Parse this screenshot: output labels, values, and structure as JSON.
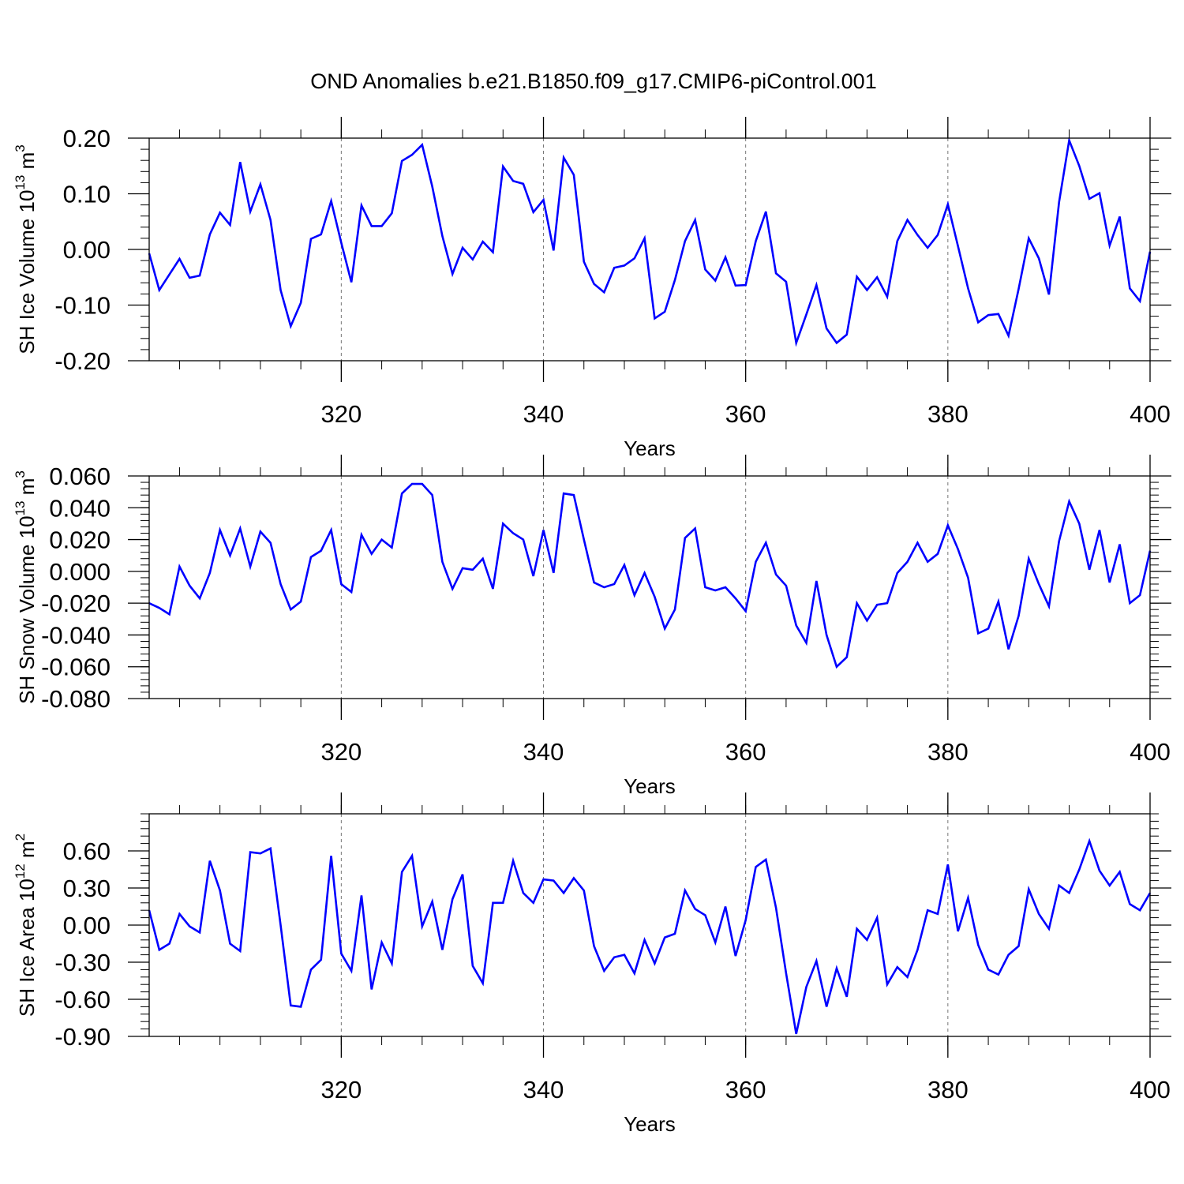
{
  "title": "OND Anomalies b.e21.B1850.f09_g17.CMIP6-piControl.001",
  "chart_data": [
    {
      "type": "line",
      "name": "ice-volume",
      "title": "",
      "xlabel": "Years",
      "ylabel": "SH Ice Volume 10",
      "ylabel_exp": "13",
      "ylabel_unit": " m",
      "ylabel_unit_exp": "3",
      "xlim": [
        301,
        400
      ],
      "ylim": [
        -0.2,
        0.2
      ],
      "xticks": [
        320,
        340,
        360,
        380,
        400
      ],
      "xtick_labels": [
        "320",
        "340",
        "360",
        "380",
        "400"
      ],
      "yticks": [
        -0.2,
        -0.1,
        0.0,
        0.1,
        0.2
      ],
      "ytick_labels": [
        "-0.20",
        "-0.10",
        "0.00",
        "0.10",
        "0.20"
      ],
      "yminor_step": 0.02,
      "xminor_step": 4,
      "grid": "vertical dashed at major x ticks",
      "line_color": "#0000ff",
      "x_start": 301,
      "values": [
        -0.007,
        -0.073,
        -0.045,
        -0.017,
        -0.051,
        -0.047,
        0.027,
        0.066,
        0.044,
        0.157,
        0.068,
        0.117,
        0.053,
        -0.073,
        -0.138,
        -0.096,
        0.019,
        0.027,
        0.087,
        0.012,
        -0.059,
        0.079,
        0.042,
        0.042,
        0.065,
        0.159,
        0.17,
        0.188,
        0.113,
        0.024,
        -0.044,
        0.003,
        -0.018,
        0.014,
        -0.005,
        0.149,
        0.123,
        0.118,
        0.067,
        0.089,
        -0.002,
        0.165,
        0.134,
        -0.022,
        -0.062,
        -0.077,
        -0.033,
        -0.029,
        -0.016,
        0.02,
        -0.124,
        -0.112,
        -0.055,
        0.015,
        0.053,
        -0.036,
        -0.056,
        -0.014,
        -0.065,
        -0.064,
        0.015,
        0.068,
        -0.043,
        -0.058,
        -0.168,
        -0.117,
        -0.064,
        -0.142,
        -0.168,
        -0.153,
        -0.049,
        -0.073,
        -0.05,
        -0.085,
        0.015,
        0.053,
        0.026,
        0.003,
        0.026,
        0.081,
        0.006,
        -0.07,
        -0.131,
        -0.118,
        -0.116,
        -0.155,
        -0.071,
        0.02,
        -0.016,
        -0.081,
        0.085,
        0.196,
        0.15,
        0.091,
        0.101,
        0.007,
        0.059,
        -0.07,
        -0.093,
        -0.004
      ]
    },
    {
      "type": "line",
      "name": "snow-volume",
      "title": "",
      "xlabel": "Years",
      "ylabel": "SH Snow Volume 10",
      "ylabel_exp": "13",
      "ylabel_unit": " m",
      "ylabel_unit_exp": "3",
      "xlim": [
        301,
        400
      ],
      "ylim": [
        -0.08,
        0.06
      ],
      "xticks": [
        320,
        340,
        360,
        380,
        400
      ],
      "xtick_labels": [
        "320",
        "340",
        "360",
        "380",
        "400"
      ],
      "yticks": [
        -0.08,
        -0.06,
        -0.04,
        -0.02,
        0.0,
        0.02,
        0.04,
        0.06
      ],
      "ytick_labels": [
        "-0.080",
        "-0.060",
        "-0.040",
        "-0.020",
        "0.000",
        "0.020",
        "0.040",
        "0.060"
      ],
      "yminor_step": 0.004,
      "xminor_step": 4,
      "grid": "vertical dashed at major x ticks",
      "line_color": "#0000ff",
      "x_start": 301,
      "values": [
        -0.02,
        -0.023,
        -0.027,
        0.003,
        -0.009,
        -0.017,
        -0.001,
        0.026,
        0.01,
        0.027,
        0.003,
        0.025,
        0.018,
        -0.008,
        -0.024,
        -0.019,
        0.009,
        0.013,
        0.026,
        -0.008,
        -0.013,
        0.023,
        0.011,
        0.02,
        0.015,
        0.049,
        0.055,
        0.055,
        0.048,
        0.006,
        -0.011,
        0.002,
        0.001,
        0.008,
        -0.011,
        0.03,
        0.024,
        0.02,
        -0.003,
        0.026,
        -0.001,
        0.049,
        0.048,
        0.02,
        -0.007,
        -0.01,
        -0.008,
        0.004,
        -0.015,
        -0.001,
        -0.016,
        -0.036,
        -0.024,
        0.021,
        0.027,
        -0.01,
        -0.012,
        -0.01,
        -0.017,
        -0.025,
        0.006,
        0.018,
        -0.002,
        -0.009,
        -0.034,
        -0.045,
        -0.006,
        -0.04,
        -0.06,
        -0.054,
        -0.02,
        -0.031,
        -0.021,
        -0.02,
        -0.001,
        0.006,
        0.018,
        0.006,
        0.011,
        0.029,
        0.014,
        -0.004,
        -0.039,
        -0.036,
        -0.019,
        -0.049,
        -0.028,
        0.008,
        -0.008,
        -0.022,
        0.019,
        0.044,
        0.03,
        0.001,
        0.026,
        -0.007,
        0.017,
        -0.02,
        -0.015,
        0.013
      ]
    },
    {
      "type": "line",
      "name": "ice-area",
      "title": "",
      "xlabel": "Years",
      "ylabel": "SH Ice Area 10",
      "ylabel_exp": "12",
      "ylabel_unit": " m",
      "ylabel_unit_exp": "2",
      "xlim": [
        301,
        400
      ],
      "ylim": [
        -0.9,
        0.9
      ],
      "xticks": [
        320,
        340,
        360,
        380,
        400
      ],
      "xtick_labels": [
        "320",
        "340",
        "360",
        "380",
        "400"
      ],
      "yticks": [
        -0.9,
        -0.6,
        -0.3,
        0.0,
        0.3,
        0.6
      ],
      "ytick_labels": [
        "-0.90",
        "-0.60",
        "-0.30",
        "0.00",
        "0.30",
        "0.60"
      ],
      "yminor_step": 0.06,
      "xminor_step": 4,
      "grid": "vertical dashed at major x ticks",
      "line_color": "#0000ff",
      "x_start": 301,
      "values": [
        0.12,
        -0.2,
        -0.15,
        0.09,
        -0.01,
        -0.06,
        0.52,
        0.28,
        -0.15,
        -0.21,
        0.59,
        0.58,
        0.62,
        0.0,
        -0.65,
        -0.66,
        -0.36,
        -0.28,
        0.56,
        -0.23,
        -0.37,
        0.24,
        -0.52,
        -0.14,
        -0.31,
        0.43,
        0.56,
        -0.01,
        0.19,
        -0.2,
        0.21,
        0.41,
        -0.33,
        -0.47,
        0.18,
        0.18,
        0.52,
        0.26,
        0.18,
        0.37,
        0.36,
        0.26,
        0.38,
        0.28,
        -0.17,
        -0.37,
        -0.26,
        -0.24,
        -0.39,
        -0.12,
        -0.31,
        -0.1,
        -0.07,
        0.28,
        0.13,
        0.08,
        -0.14,
        0.15,
        -0.25,
        0.04,
        0.47,
        0.53,
        0.14,
        -0.39,
        -0.88,
        -0.5,
        -0.29,
        -0.66,
        -0.35,
        -0.58,
        -0.03,
        -0.12,
        0.06,
        -0.48,
        -0.34,
        -0.42,
        -0.2,
        0.12,
        0.09,
        0.49,
        -0.05,
        0.22,
        -0.16,
        -0.36,
        -0.4,
        -0.24,
        -0.17,
        0.29,
        0.09,
        -0.03,
        0.32,
        0.26,
        0.45,
        0.68,
        0.44,
        0.32,
        0.43,
        0.17,
        0.12,
        0.26
      ]
    }
  ]
}
